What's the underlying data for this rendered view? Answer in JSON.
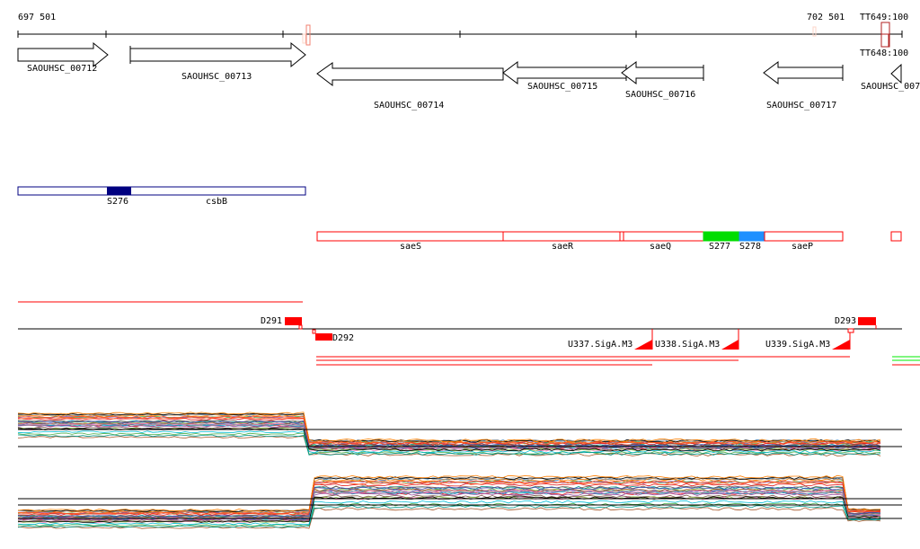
{
  "ruler": {
    "start_label": "697 501",
    "end_label": "702 501",
    "marker_top": "TT649:100",
    "marker_bottom": "TT648:100"
  },
  "genes": [
    {
      "label": "SAOUHSC_00712",
      "strand": "+"
    },
    {
      "label": "SAOUHSC_00713",
      "strand": "+"
    },
    {
      "label": "SAOUHSC_00714",
      "strand": "-"
    },
    {
      "label": "SAOUHSC_00715",
      "strand": "-"
    },
    {
      "label": "SAOUHSC_00716",
      "strand": "-"
    },
    {
      "label": "SAOUHSC_00717",
      "strand": "-"
    },
    {
      "label": "SAOUHSC_007",
      "strand": "-"
    }
  ],
  "operon1": {
    "segments": [
      "S276",
      "csbB"
    ],
    "color": "#000080"
  },
  "operon2": {
    "segments": [
      "saeS",
      "saeR",
      "saeQ",
      "S277",
      "S278",
      "saeP"
    ],
    "colors": {
      "S277": "#00dd00",
      "S278": "#1e90ff",
      "border": "#ff0000"
    }
  },
  "features": {
    "d291": "D291",
    "d292": "D292",
    "d293": "D293",
    "u337": "U337.SigA.M3",
    "u338": "U338.SigA.M3",
    "u339": "U339.SigA.M3"
  }
}
